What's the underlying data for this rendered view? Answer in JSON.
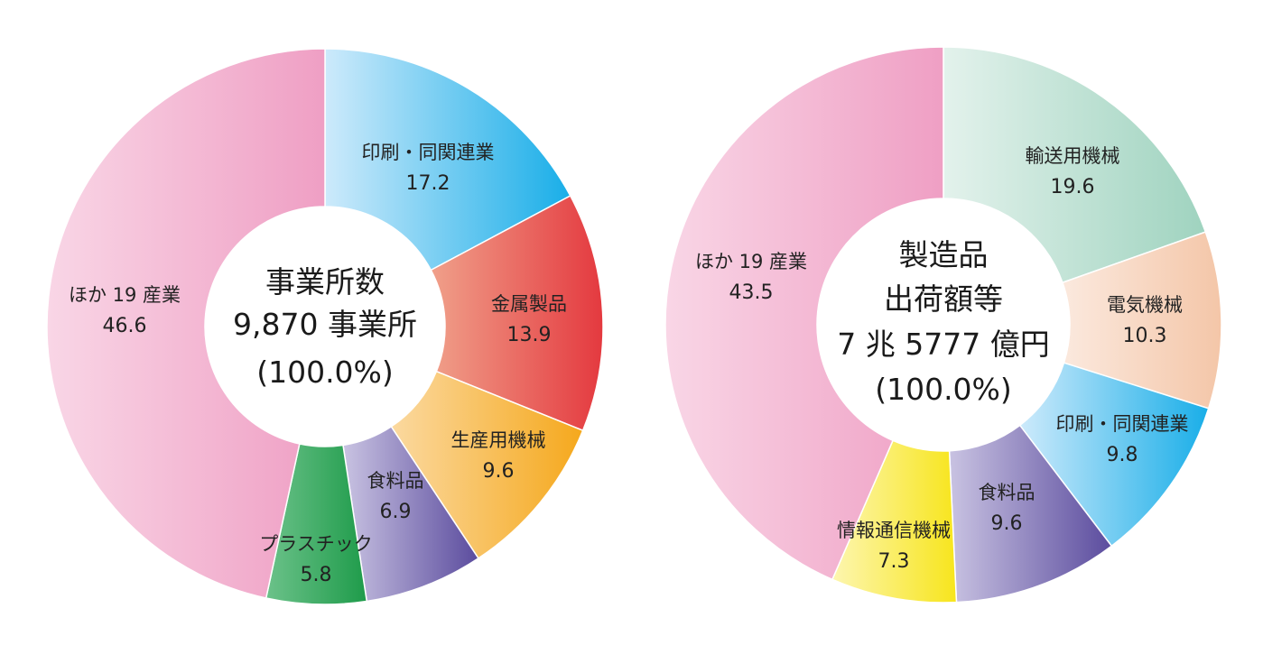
{
  "chart_data": [
    {
      "type": "donut",
      "center_lines": [
        "事業所数",
        "9,870 事業所",
        "(100.0%)"
      ],
      "slices": [
        {
          "label": "印刷・同関連業",
          "value": 17.2,
          "value_text": "17.2",
          "color_a": "#cdeafb",
          "color_b": "#19aee8"
        },
        {
          "label": "金属製品",
          "value": 13.9,
          "value_text": "13.9",
          "color_a": "#f0a08a",
          "color_b": "#e4393f"
        },
        {
          "label": "生産用機械",
          "value": 9.6,
          "value_text": "9.6",
          "color_a": "#fbd9a0",
          "color_b": "#f5a81c"
        },
        {
          "label": "食料品",
          "value": 6.9,
          "value_text": "6.9",
          "color_a": "#c9c3e2",
          "color_b": "#5b4c9e"
        },
        {
          "label": "プラスチック",
          "value": 5.8,
          "value_text": "5.8",
          "color_a": "#6cc28a",
          "color_b": "#1e9b4a"
        },
        {
          "label": "ほか 19 産業",
          "value": 46.6,
          "value_text": "46.6",
          "color_a": "#f9d6e6",
          "color_b": "#ef9fc4"
        }
      ]
    },
    {
      "type": "donut",
      "center_lines": [
        "製造品",
        "出荷額等",
        "7 兆 5777 億円",
        "(100.0%)"
      ],
      "slices": [
        {
          "label": "輸送用機械",
          "value": 19.6,
          "value_text": "19.6",
          "color_a": "#e3f2ec",
          "color_b": "#9fd3bf"
        },
        {
          "label": "電気機械",
          "value": 10.3,
          "value_text": "10.3",
          "color_a": "#fbe9de",
          "color_b": "#f4c6a8"
        },
        {
          "label": "印刷・同関連業",
          "value": 9.8,
          "value_text": "9.8",
          "color_a": "#cdeafb",
          "color_b": "#19aee8"
        },
        {
          "label": "食料品",
          "value": 9.6,
          "value_text": "9.6",
          "color_a": "#c9c3e2",
          "color_b": "#5b4c9e"
        },
        {
          "label": "情報通信機械",
          "value": 7.3,
          "value_text": "7.3",
          "color_a": "#fdf6b0",
          "color_b": "#f7e51c"
        },
        {
          "label": "ほか 19 産業",
          "value": 43.5,
          "value_text": "43.5",
          "color_a": "#f9d6e6",
          "color_b": "#ef9fc4"
        }
      ]
    }
  ]
}
